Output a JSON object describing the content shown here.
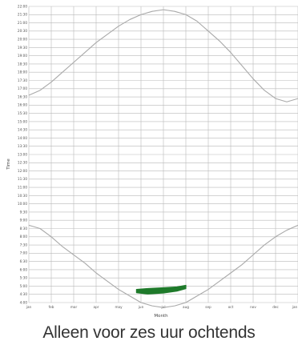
{
  "caption": "Alleen voor zes uur ochtends",
  "colors": {
    "grid": "#b9b9b9",
    "curve": "#a9a9a9",
    "highlight": "#1e7a2a"
  },
  "chart_data": {
    "type": "line",
    "xlabel": "Month",
    "ylabel": "Time",
    "x_categories": [
      "jan",
      "feb",
      "mar",
      "apr",
      "may",
      "jun",
      "jul",
      "aug",
      "sep",
      "oct",
      "nov",
      "dec",
      "jan"
    ],
    "y_ticks": [
      "4:00",
      "4:30",
      "5:00",
      "5:30",
      "6:00",
      "6:30",
      "7:00",
      "7:30",
      "8:00",
      "8:30",
      "9:00",
      "9:30",
      "10:00",
      "10:30",
      "11:00",
      "11:30",
      "12:00",
      "12:30",
      "13:00",
      "13:30",
      "14:00",
      "14:30",
      "15:00",
      "15:30",
      "16:00",
      "16:30",
      "17:00",
      "17:30",
      "18:00",
      "18:30",
      "19:00",
      "19:30",
      "20:00",
      "20:30",
      "21:00",
      "21:30",
      "22:00"
    ],
    "ylim": [
      4,
      22
    ],
    "grid": true,
    "series": [
      {
        "x": [
          0,
          0.5,
          1,
          1.5,
          2,
          2.5,
          3,
          3.5,
          4,
          4.5,
          5,
          5.5,
          6,
          6.5,
          7,
          7.5,
          8,
          8.5,
          9,
          9.5,
          10,
          10.5,
          11,
          11.5,
          12
        ],
        "y": [
          8.7,
          8.5,
          8.0,
          7.4,
          6.9,
          6.4,
          5.8,
          5.3,
          4.8,
          4.4,
          4.0,
          3.8,
          3.7,
          3.8,
          4.0,
          4.4,
          4.8,
          5.3,
          5.8,
          6.3,
          6.9,
          7.5,
          8.0,
          8.4,
          8.7
        ]
      },
      {
        "x": [
          0,
          0.5,
          1,
          1.5,
          2,
          2.5,
          3,
          3.5,
          4,
          4.5,
          5,
          5.5,
          6,
          6.5,
          7,
          7.5,
          8,
          8.5,
          9,
          9.5,
          10,
          10.5,
          11,
          11.5,
          12
        ],
        "y": [
          16.6,
          16.9,
          17.4,
          18.0,
          18.6,
          19.2,
          19.8,
          20.3,
          20.8,
          21.2,
          21.5,
          21.7,
          21.8,
          21.7,
          21.5,
          21.1,
          20.5,
          19.9,
          19.2,
          18.4,
          17.6,
          16.9,
          16.4,
          16.2,
          16.4
        ]
      }
    ],
    "highlight": {
      "x_start": 4.8,
      "x_end": 7.0,
      "upper": [
        [
          4.8,
          4.8
        ],
        [
          5.3,
          4.85
        ],
        [
          6.0,
          4.9
        ],
        [
          6.6,
          4.95
        ],
        [
          7.0,
          5.05
        ]
      ],
      "lower": [
        [
          7.0,
          4.85
        ],
        [
          6.6,
          4.7
        ],
        [
          6.0,
          4.58
        ],
        [
          5.3,
          4.52
        ],
        [
          4.8,
          4.6
        ]
      ]
    }
  }
}
